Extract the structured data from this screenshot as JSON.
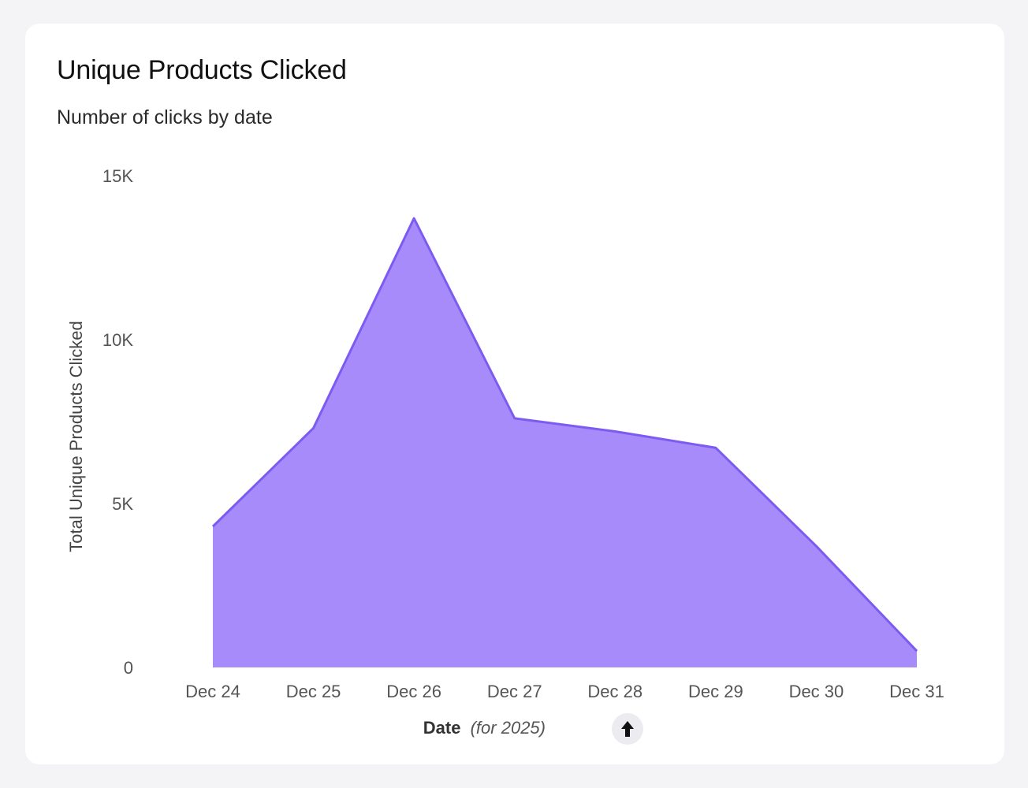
{
  "card": {
    "title": "Unique Products Clicked",
    "subtitle": "Number of clicks by date"
  },
  "chart_data": {
    "type": "area",
    "title": "Unique Products Clicked",
    "subtitle": "Number of clicks by date",
    "categories": [
      "Dec 24",
      "Dec 25",
      "Dec 26",
      "Dec 27",
      "Dec 28",
      "Dec 29",
      "Dec 30",
      "Dec 31"
    ],
    "series": [
      {
        "values": [
          4300,
          7300,
          13700,
          7600,
          7200,
          6700,
          3700,
          500
        ]
      }
    ],
    "ylabel": "Total Unique Products Clicked",
    "xlabel": "Date",
    "xlabel_qualifier": "(for 2025)",
    "sort_indicator": "arrow-up-icon",
    "ylim": [
      0,
      15000
    ],
    "yticks": [
      0,
      5000,
      10000,
      15000
    ],
    "ytick_labels": [
      "0",
      "5K",
      "10K",
      "15K"
    ],
    "grid": false,
    "legend": "none",
    "colors": {
      "fill": "#a78bfa",
      "stroke": "#7c5cf0"
    }
  }
}
